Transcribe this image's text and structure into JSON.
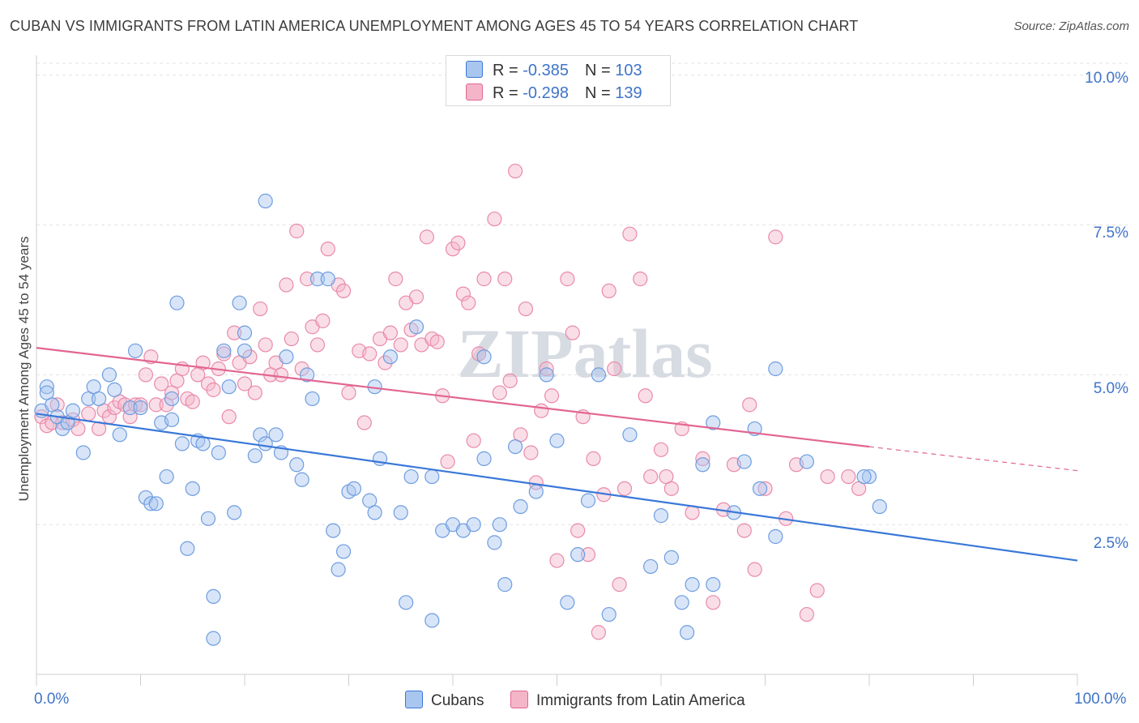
{
  "title": "CUBAN VS IMMIGRANTS FROM LATIN AMERICA UNEMPLOYMENT AMONG AGES 45 TO 54 YEARS CORRELATION CHART",
  "source": "Source: ZipAtlas.com",
  "watermark": "ZIPatlas",
  "colors": {
    "blue": "#3a78d8",
    "blue_fill": "#a9c6ef",
    "pink": "#e26592",
    "pink_fill": "#f5b5c9",
    "tick_label": "#3f74c8"
  },
  "legend": {
    "rows": [
      {
        "r_label": "R = ",
        "r_value": "-0.385",
        "n_label": "N = ",
        "n_value": "103"
      },
      {
        "r_label": "R = ",
        "r_value": "-0.298",
        "n_label": "N = ",
        "n_value": "139"
      }
    ]
  },
  "chart_data": {
    "type": "scatter",
    "title": "CUBAN VS IMMIGRANTS FROM LATIN AMERICA UNEMPLOYMENT AMONG AGES 45 TO 54 YEARS CORRELATION CHART",
    "xlabel": "",
    "ylabel": "Unemployment Among Ages 45 to 54 years",
    "x_tick_labels": [
      "0.0%",
      "100.0%"
    ],
    "y_tick_labels": [
      "2.5%",
      "5.0%",
      "7.5%",
      "10.0%"
    ],
    "xlim": [
      0,
      100
    ],
    "ylim": [
      0,
      10.2
    ],
    "grid": "horizontal dashed",
    "legend_placement": "top-center",
    "series": [
      {
        "name": "Cubans",
        "color": "#3a78d8",
        "trend": {
          "x": [
            0,
            100
          ],
          "y": [
            4.35,
            1.9
          ]
        },
        "points": [
          [
            0.5,
            4.4
          ],
          [
            1,
            4.8
          ],
          [
            1.5,
            4.5
          ],
          [
            1,
            4.7
          ],
          [
            2,
            4.3
          ],
          [
            2.5,
            4.1
          ],
          [
            3,
            4.2
          ],
          [
            3.5,
            4.4
          ],
          [
            4.5,
            3.7
          ],
          [
            5,
            4.6
          ],
          [
            5.5,
            4.8
          ],
          [
            6,
            4.6
          ],
          [
            7,
            5.0
          ],
          [
            7.5,
            4.75
          ],
          [
            8,
            4.0
          ],
          [
            9,
            4.45
          ],
          [
            9.5,
            5.4
          ],
          [
            10,
            4.45
          ],
          [
            10.5,
            2.95
          ],
          [
            11,
            2.85
          ],
          [
            11.5,
            2.85
          ],
          [
            12,
            4.2
          ],
          [
            12.5,
            3.3
          ],
          [
            13,
            4.25
          ],
          [
            13,
            4.6
          ],
          [
            13.5,
            6.2
          ],
          [
            14,
            3.85
          ],
          [
            14.5,
            2.1
          ],
          [
            15,
            3.1
          ],
          [
            15.5,
            3.9
          ],
          [
            16,
            3.85
          ],
          [
            16.5,
            2.6
          ],
          [
            17,
            1.3
          ],
          [
            17,
            0.6
          ],
          [
            17.5,
            3.7
          ],
          [
            18,
            5.4
          ],
          [
            18.5,
            4.8
          ],
          [
            19,
            2.7
          ],
          [
            19.5,
            6.2
          ],
          [
            20,
            5.7
          ],
          [
            20,
            5.4
          ],
          [
            21,
            3.65
          ],
          [
            21.5,
            4.0
          ],
          [
            22,
            3.85
          ],
          [
            22,
            7.9
          ],
          [
            23,
            4.0
          ],
          [
            23.5,
            3.7
          ],
          [
            24,
            5.3
          ],
          [
            25,
            3.5
          ],
          [
            25.5,
            3.25
          ],
          [
            26,
            5.0
          ],
          [
            26.5,
            4.6
          ],
          [
            27,
            6.6
          ],
          [
            28,
            6.6
          ],
          [
            28.5,
            2.4
          ],
          [
            29,
            1.75
          ],
          [
            29.5,
            2.05
          ],
          [
            30,
            3.05
          ],
          [
            30.5,
            3.1
          ],
          [
            32,
            2.9
          ],
          [
            32.5,
            4.8
          ],
          [
            32.5,
            2.7
          ],
          [
            33,
            3.6
          ],
          [
            34,
            5.3
          ],
          [
            35,
            2.7
          ],
          [
            35.5,
            1.2
          ],
          [
            36,
            3.3
          ],
          [
            36.5,
            5.8
          ],
          [
            38,
            0.9
          ],
          [
            38,
            3.3
          ],
          [
            39,
            2.4
          ],
          [
            40,
            2.5
          ],
          [
            41,
            2.4
          ],
          [
            42,
            2.5
          ],
          [
            43,
            5.3
          ],
          [
            43,
            3.6
          ],
          [
            44,
            2.2
          ],
          [
            44.5,
            2.5
          ],
          [
            45,
            1.5
          ],
          [
            46,
            3.8
          ],
          [
            46.5,
            2.8
          ],
          [
            48,
            3.05
          ],
          [
            49,
            5.0
          ],
          [
            50,
            3.9
          ],
          [
            51,
            1.2
          ],
          [
            52,
            2.0
          ],
          [
            53,
            2.9
          ],
          [
            54,
            5.0
          ],
          [
            55,
            1.0
          ],
          [
            57,
            4.0
          ],
          [
            59,
            1.8
          ],
          [
            60,
            2.65
          ],
          [
            61,
            1.95
          ],
          [
            62,
            1.2
          ],
          [
            62.5,
            0.7
          ],
          [
            63,
            1.5
          ],
          [
            64,
            3.5
          ],
          [
            65,
            4.2
          ],
          [
            65,
            1.5
          ],
          [
            67,
            2.7
          ],
          [
            68,
            3.55
          ],
          [
            69,
            4.1
          ],
          [
            69.5,
            3.1
          ],
          [
            71,
            5.1
          ],
          [
            71,
            2.3
          ],
          [
            74,
            3.55
          ],
          [
            80,
            3.3
          ],
          [
            81,
            2.8
          ],
          [
            79.5,
            3.3
          ]
        ]
      },
      {
        "name": "Immigrants from Latin America",
        "color": "#e26592",
        "trend": {
          "x": [
            0,
            80
          ],
          "y": [
            5.45,
            3.8
          ]
        },
        "trend_dashed": {
          "x": [
            80,
            100
          ],
          "y": [
            3.8,
            3.4
          ]
        },
        "points": [
          [
            0.5,
            4.3
          ],
          [
            1,
            4.15
          ],
          [
            1.5,
            4.2
          ],
          [
            2,
            4.5
          ],
          [
            2.5,
            4.2
          ],
          [
            3.5,
            4.25
          ],
          [
            4,
            4.1
          ],
          [
            5,
            4.35
          ],
          [
            6,
            4.1
          ],
          [
            6.5,
            4.4
          ],
          [
            7,
            4.3
          ],
          [
            7.5,
            4.45
          ],
          [
            8,
            4.55
          ],
          [
            8.5,
            4.5
          ],
          [
            9,
            4.3
          ],
          [
            9.5,
            4.5
          ],
          [
            10,
            4.5
          ],
          [
            10.5,
            5.0
          ],
          [
            11,
            5.3
          ],
          [
            11.5,
            4.5
          ],
          [
            12,
            4.85
          ],
          [
            12.5,
            4.5
          ],
          [
            13,
            4.7
          ],
          [
            13.5,
            4.9
          ],
          [
            14,
            5.1
          ],
          [
            14.5,
            4.6
          ],
          [
            15,
            4.55
          ],
          [
            15.5,
            5.0
          ],
          [
            16,
            5.2
          ],
          [
            16.5,
            4.85
          ],
          [
            17,
            4.75
          ],
          [
            17.5,
            5.1
          ],
          [
            18,
            5.35
          ],
          [
            18.5,
            4.3
          ],
          [
            19,
            5.7
          ],
          [
            19.5,
            5.2
          ],
          [
            20,
            4.85
          ],
          [
            20.5,
            5.3
          ],
          [
            21,
            4.7
          ],
          [
            21.5,
            6.1
          ],
          [
            22,
            5.5
          ],
          [
            22.5,
            5.0
          ],
          [
            23,
            5.2
          ],
          [
            23.5,
            5.0
          ],
          [
            24,
            6.5
          ],
          [
            24.5,
            5.6
          ],
          [
            25,
            7.4
          ],
          [
            25.5,
            5.1
          ],
          [
            26,
            6.6
          ],
          [
            26.5,
            5.8
          ],
          [
            27,
            5.5
          ],
          [
            27.5,
            5.9
          ],
          [
            28,
            7.1
          ],
          [
            29,
            6.5
          ],
          [
            29.5,
            6.4
          ],
          [
            30,
            4.7
          ],
          [
            31,
            5.4
          ],
          [
            31.5,
            4.2
          ],
          [
            32,
            5.35
          ],
          [
            33,
            5.6
          ],
          [
            33.5,
            5.2
          ],
          [
            34,
            5.7
          ],
          [
            34.5,
            6.6
          ],
          [
            35,
            5.5
          ],
          [
            35.5,
            6.2
          ],
          [
            36,
            5.75
          ],
          [
            36.5,
            6.3
          ],
          [
            37,
            5.5
          ],
          [
            37.5,
            7.3
          ],
          [
            38,
            5.6
          ],
          [
            38.5,
            5.55
          ],
          [
            39,
            4.65
          ],
          [
            39.5,
            3.55
          ],
          [
            40,
            7.1
          ],
          [
            40.5,
            7.2
          ],
          [
            41,
            6.35
          ],
          [
            41.5,
            6.2
          ],
          [
            42,
            3.9
          ],
          [
            42.5,
            5.35
          ],
          [
            43,
            6.6
          ],
          [
            44,
            7.6
          ],
          [
            44.5,
            4.7
          ],
          [
            45,
            6.6
          ],
          [
            45.5,
            4.9
          ],
          [
            46,
            8.4
          ],
          [
            46.5,
            4.0
          ],
          [
            47,
            6.1
          ],
          [
            47.5,
            3.7
          ],
          [
            48,
            3.2
          ],
          [
            48.5,
            4.4
          ],
          [
            49,
            5.1
          ],
          [
            49.5,
            4.65
          ],
          [
            50,
            1.9
          ],
          [
            51,
            6.6
          ],
          [
            51.5,
            5.7
          ],
          [
            52,
            2.4
          ],
          [
            52.5,
            4.3
          ],
          [
            53,
            2.0
          ],
          [
            53.5,
            3.6
          ],
          [
            54,
            0.7
          ],
          [
            54.5,
            3.0
          ],
          [
            55,
            6.4
          ],
          [
            55.5,
            5.1
          ],
          [
            56,
            1.5
          ],
          [
            56.5,
            3.1
          ],
          [
            57,
            7.35
          ],
          [
            58,
            6.6
          ],
          [
            58.5,
            4.65
          ],
          [
            59,
            3.3
          ],
          [
            60,
            3.75
          ],
          [
            60.5,
            3.3
          ],
          [
            61,
            3.1
          ],
          [
            62,
            4.1
          ],
          [
            63,
            2.7
          ],
          [
            64,
            3.6
          ],
          [
            65,
            1.2
          ],
          [
            66,
            2.75
          ],
          [
            67,
            3.5
          ],
          [
            68,
            2.4
          ],
          [
            68.5,
            4.5
          ],
          [
            69,
            1.75
          ],
          [
            70,
            3.1
          ],
          [
            71,
            7.3
          ],
          [
            72,
            2.6
          ],
          [
            73,
            3.5
          ],
          [
            74,
            1.0
          ],
          [
            75,
            1.4
          ],
          [
            76,
            3.3
          ],
          [
            78,
            3.3
          ],
          [
            79,
            3.1
          ]
        ]
      }
    ]
  },
  "x_axis": {
    "left_label": "0.0%",
    "right_label": "100.0%"
  },
  "y_axis": {
    "title": "Unemployment Among Ages 45 to 54 years"
  },
  "bottom_legend": {
    "series1": "Cubans",
    "series2": "Immigrants from Latin America"
  }
}
